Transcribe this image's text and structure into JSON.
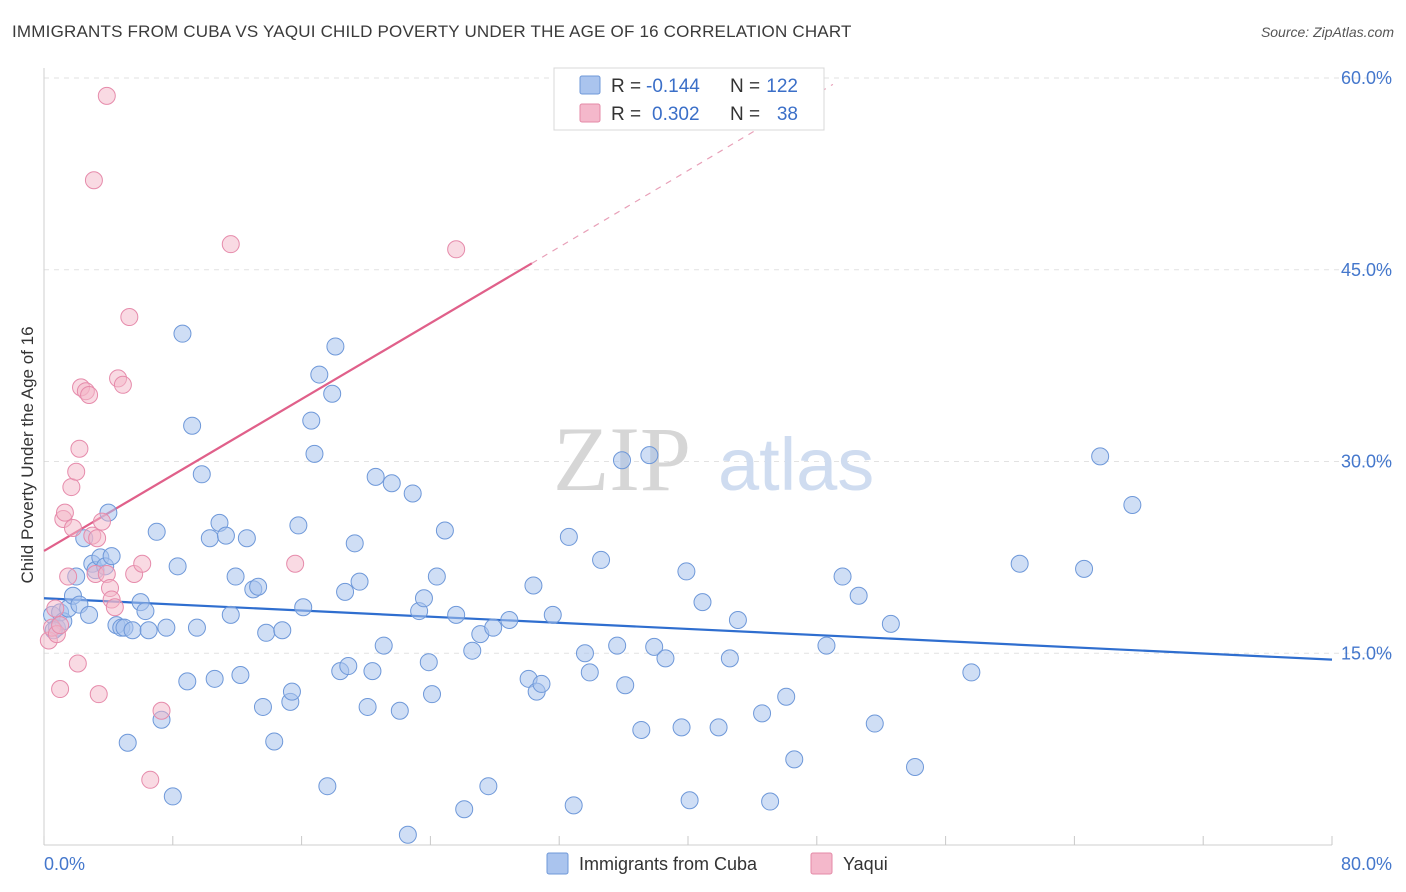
{
  "header": {
    "title": "IMMIGRANTS FROM CUBA VS YAQUI CHILD POVERTY UNDER THE AGE OF 16 CORRELATION CHART",
    "source": "Source: ZipAtlas.com"
  },
  "watermark": {
    "zip": "ZIP",
    "atlas": "atlas"
  },
  "legend": {
    "r_label": "R =",
    "n_label": "N =",
    "items": [
      {
        "r": "-0.144",
        "n": "122",
        "color": "#aac4ee"
      },
      {
        "r": "0.302",
        "n": "38",
        "color": "#f4b8cb"
      }
    ]
  },
  "colors": {
    "blue_point": "#a8c3ec",
    "blue_line": "#2f6ecf",
    "pink_point": "#f3b6c8",
    "pink_line": "#e0608a",
    "tick_text": "#4477cc",
    "grid": "#e2e2e2"
  },
  "chart_data": {
    "type": "scatter",
    "title": "IMMIGRANTS FROM CUBA VS YAQUI CHILD POVERTY UNDER THE AGE OF 16 CORRELATION CHART",
    "xlabel": "",
    "ylabel": "Child Poverty Under the Age of 16",
    "xlim": [
      0,
      80
    ],
    "ylim": [
      0,
      60
    ],
    "x_ticks": [
      "0.0%",
      "80.0%"
    ],
    "y_ticks": [
      {
        "value": 15,
        "label": "15.0%"
      },
      {
        "value": 30,
        "label": "30.0%"
      },
      {
        "value": 45,
        "label": "45.0%"
      },
      {
        "value": 60,
        "label": "60.0%"
      }
    ],
    "grid": true,
    "legend_position": "top-center",
    "series": [
      {
        "name": "Immigrants from Cuba",
        "r": -0.144,
        "n": 122,
        "trend": {
          "x": [
            0,
            80
          ],
          "y": [
            19.3,
            14.5
          ]
        },
        "points": [
          [
            0.5,
            18.0
          ],
          [
            0.8,
            17.0
          ],
          [
            1.0,
            18.2
          ],
          [
            1.2,
            17.5
          ],
          [
            0.6,
            16.8
          ],
          [
            1.5,
            18.5
          ],
          [
            1.8,
            19.5
          ],
          [
            2.0,
            21.0
          ],
          [
            2.2,
            18.8
          ],
          [
            2.5,
            24.0
          ],
          [
            2.8,
            18.0
          ],
          [
            3.0,
            22.0
          ],
          [
            3.2,
            21.5
          ],
          [
            3.5,
            22.5
          ],
          [
            3.8,
            21.8
          ],
          [
            4.0,
            26.0
          ],
          [
            4.2,
            22.6
          ],
          [
            4.5,
            17.2
          ],
          [
            4.8,
            17.0
          ],
          [
            5.0,
            17.0
          ],
          [
            5.2,
            8.0
          ],
          [
            5.5,
            16.8
          ],
          [
            6.0,
            19.0
          ],
          [
            6.3,
            18.3
          ],
          [
            6.5,
            16.8
          ],
          [
            7.0,
            24.5
          ],
          [
            7.3,
            9.8
          ],
          [
            7.6,
            17.0
          ],
          [
            8.0,
            3.8
          ],
          [
            8.3,
            21.8
          ],
          [
            8.6,
            40.0
          ],
          [
            8.9,
            12.8
          ],
          [
            9.2,
            32.8
          ],
          [
            9.5,
            17.0
          ],
          [
            9.8,
            29.0
          ],
          [
            10.3,
            24.0
          ],
          [
            10.6,
            13.0
          ],
          [
            10.9,
            25.2
          ],
          [
            11.3,
            24.2
          ],
          [
            11.6,
            18.0
          ],
          [
            11.9,
            21.0
          ],
          [
            12.2,
            13.3
          ],
          [
            12.6,
            24.0
          ],
          [
            13.0,
            20.0
          ],
          [
            13.3,
            20.2
          ],
          [
            13.6,
            10.8
          ],
          [
            13.8,
            16.6
          ],
          [
            14.3,
            8.1
          ],
          [
            14.8,
            16.8
          ],
          [
            15.3,
            11.2
          ],
          [
            15.4,
            12.0
          ],
          [
            15.8,
            25.0
          ],
          [
            16.1,
            18.6
          ],
          [
            16.6,
            33.2
          ],
          [
            16.8,
            30.6
          ],
          [
            17.1,
            36.8
          ],
          [
            17.6,
            4.6
          ],
          [
            17.9,
            35.3
          ],
          [
            18.1,
            39.0
          ],
          [
            18.4,
            13.6
          ],
          [
            18.7,
            19.8
          ],
          [
            18.9,
            14.0
          ],
          [
            19.3,
            23.6
          ],
          [
            19.6,
            20.6
          ],
          [
            20.1,
            10.8
          ],
          [
            20.4,
            13.6
          ],
          [
            20.6,
            28.8
          ],
          [
            21.1,
            15.6
          ],
          [
            21.6,
            28.3
          ],
          [
            22.1,
            10.5
          ],
          [
            22.6,
            0.8
          ],
          [
            22.9,
            27.5
          ],
          [
            23.3,
            18.3
          ],
          [
            23.6,
            19.3
          ],
          [
            23.9,
            14.3
          ],
          [
            24.1,
            11.8
          ],
          [
            24.4,
            21.0
          ],
          [
            24.9,
            24.6
          ],
          [
            25.6,
            18.0
          ],
          [
            26.1,
            2.8
          ],
          [
            26.6,
            15.2
          ],
          [
            27.1,
            16.5
          ],
          [
            27.6,
            4.6
          ],
          [
            27.9,
            17.0
          ],
          [
            28.9,
            17.6
          ],
          [
            30.1,
            13.0
          ],
          [
            30.4,
            20.3
          ],
          [
            30.6,
            12.0
          ],
          [
            30.9,
            12.6
          ],
          [
            31.6,
            18.0
          ],
          [
            32.6,
            24.1
          ],
          [
            32.9,
            3.1
          ],
          [
            33.6,
            15.0
          ],
          [
            33.9,
            13.5
          ],
          [
            34.6,
            22.3
          ],
          [
            35.6,
            15.6
          ],
          [
            35.9,
            30.1
          ],
          [
            36.1,
            12.5
          ],
          [
            37.1,
            9.0
          ],
          [
            37.6,
            30.5
          ],
          [
            37.9,
            15.5
          ],
          [
            38.6,
            14.6
          ],
          [
            39.6,
            9.2
          ],
          [
            39.9,
            21.4
          ],
          [
            40.1,
            3.5
          ],
          [
            40.9,
            19.0
          ],
          [
            41.9,
            9.2
          ],
          [
            42.6,
            14.6
          ],
          [
            43.1,
            17.6
          ],
          [
            44.6,
            10.3
          ],
          [
            45.1,
            3.4
          ],
          [
            46.1,
            11.6
          ],
          [
            46.6,
            6.7
          ],
          [
            48.6,
            15.6
          ],
          [
            49.6,
            21.0
          ],
          [
            50.6,
            19.5
          ],
          [
            51.6,
            9.5
          ],
          [
            52.6,
            17.3
          ],
          [
            54.1,
            6.1
          ],
          [
            57.6,
            13.5
          ],
          [
            60.6,
            22.0
          ],
          [
            64.6,
            21.6
          ],
          [
            65.6,
            30.4
          ],
          [
            67.6,
            26.6
          ]
        ]
      },
      {
        "name": "Yaqui",
        "r": 0.302,
        "n": 38,
        "trend": {
          "x": [
            0,
            30.3
          ],
          "y": [
            23.0,
            45.5
          ]
        },
        "trend_dashed": {
          "x": [
            30.3,
            49
          ],
          "y": [
            45.5,
            59.5
          ]
        },
        "points": [
          [
            0.3,
            16.0
          ],
          [
            0.5,
            17.0
          ],
          [
            0.7,
            18.5
          ],
          [
            0.8,
            16.5
          ],
          [
            1.0,
            17.2
          ],
          [
            1.0,
            12.2
          ],
          [
            1.2,
            25.5
          ],
          [
            1.3,
            26.0
          ],
          [
            1.5,
            21.0
          ],
          [
            1.7,
            28.0
          ],
          [
            1.8,
            24.8
          ],
          [
            2.0,
            29.2
          ],
          [
            2.1,
            14.2
          ],
          [
            2.2,
            31.0
          ],
          [
            2.3,
            35.8
          ],
          [
            2.6,
            35.5
          ],
          [
            2.8,
            35.2
          ],
          [
            3.0,
            24.2
          ],
          [
            3.2,
            21.2
          ],
          [
            3.4,
            11.8
          ],
          [
            3.6,
            25.3
          ],
          [
            3.9,
            58.6
          ],
          [
            3.9,
            21.2
          ],
          [
            4.1,
            20.1
          ],
          [
            4.2,
            19.2
          ],
          [
            4.6,
            36.5
          ],
          [
            4.9,
            36.0
          ],
          [
            5.3,
            41.3
          ],
          [
            5.6,
            21.2
          ],
          [
            6.1,
            22.0
          ],
          [
            6.6,
            5.1
          ],
          [
            7.3,
            10.5
          ],
          [
            3.1,
            52.0
          ],
          [
            11.6,
            47.0
          ],
          [
            15.6,
            22.0
          ],
          [
            25.6,
            46.6
          ],
          [
            3.3,
            24.0
          ],
          [
            4.4,
            18.6
          ]
        ]
      }
    ]
  },
  "bottom_legend": [
    {
      "label": "Immigrants from Cuba"
    },
    {
      "label": "Yaqui"
    }
  ]
}
